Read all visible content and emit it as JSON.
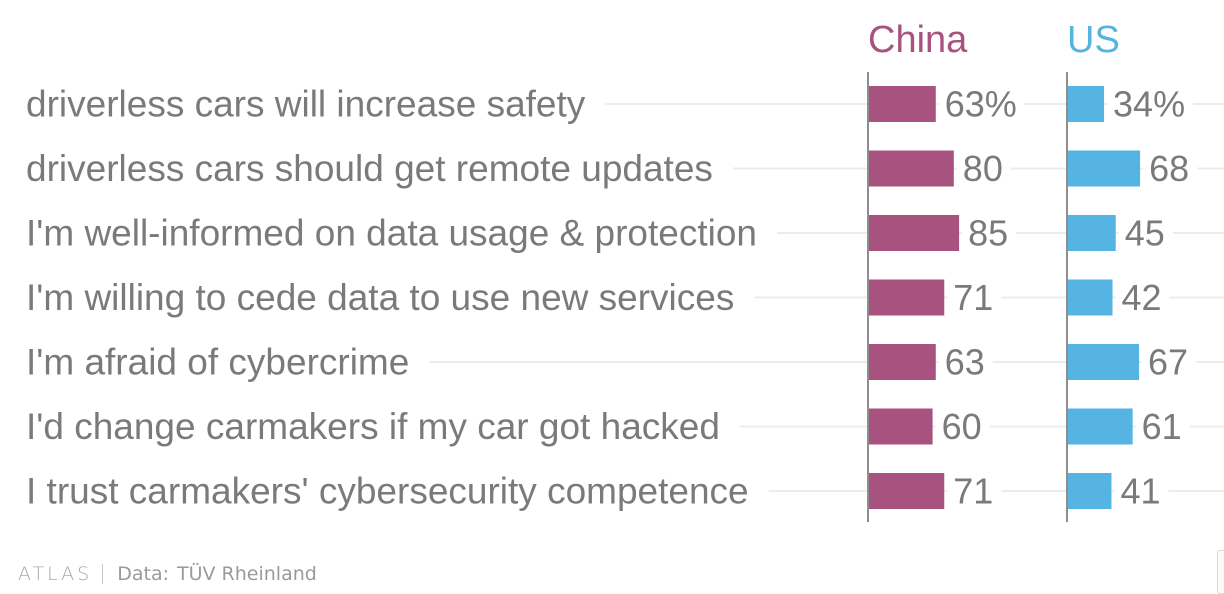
{
  "chart_data": {
    "type": "bar",
    "orientation": "horizontal",
    "categories": [
      "driverless cars will increase safety",
      "driverless cars should get remote updates",
      "I'm well-informed on data usage & protection",
      "I'm willing to cede data to use new services",
      "I'm afraid of cybercrime",
      "I'd change carmakers if my car got hacked",
      "I trust carmakers' cybersecurity competence"
    ],
    "series": [
      {
        "name": "China",
        "color": "#a8527f",
        "values": [
          63,
          80,
          85,
          71,
          63,
          60,
          71
        ],
        "labels": [
          "63%",
          "80",
          "85",
          "71",
          "63",
          "60",
          "71"
        ]
      },
      {
        "name": "US",
        "color": "#56b4e3",
        "values": [
          34,
          68,
          45,
          42,
          67,
          61,
          41
        ],
        "labels": [
          "34%",
          "68",
          "45",
          "42",
          "67",
          "61",
          "41"
        ]
      }
    ],
    "xlim": [
      0,
      100
    ],
    "grid": false
  },
  "footer": {
    "logo": "ATLAS",
    "data_label": "Data:",
    "source": "TÜV Rheinland"
  }
}
